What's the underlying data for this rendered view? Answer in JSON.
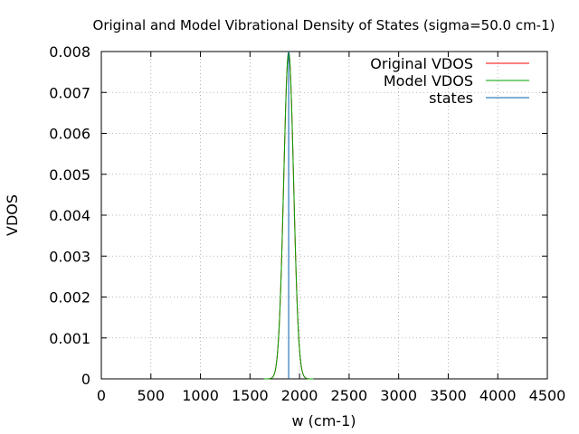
{
  "chart_data": {
    "type": "line",
    "title": "Original and Model Vibrational Density of States (sigma=50.0 cm-1)",
    "xlabel": "w (cm-1)",
    "ylabel": "VDOS",
    "xlim": [
      0,
      4500
    ],
    "ylim": [
      0,
      0.008
    ],
    "x_ticks": [
      "0",
      "500",
      "1000",
      "1500",
      "2000",
      "2500",
      "3000",
      "3500",
      "4000",
      "4500"
    ],
    "y_ticks": [
      "0",
      "0.001",
      "0.002",
      "0.003",
      "0.004",
      "0.005",
      "0.006",
      "0.007",
      "0.008"
    ],
    "grid": true,
    "legend_position": "top-right",
    "series": [
      {
        "name": "Original VDOS",
        "color": "#ff0000",
        "kind": "gaussian",
        "center": 1890,
        "sigma": 50.0,
        "peak": 0.00798
      },
      {
        "name": "Model VDOS",
        "color": "#00a000",
        "kind": "gaussian",
        "center": 1890,
        "sigma": 50.0,
        "peak": 0.00798
      },
      {
        "name": "states",
        "color": "#0060ad",
        "kind": "impulse",
        "x": [
          1890
        ],
        "y": [
          0.008
        ]
      }
    ]
  }
}
